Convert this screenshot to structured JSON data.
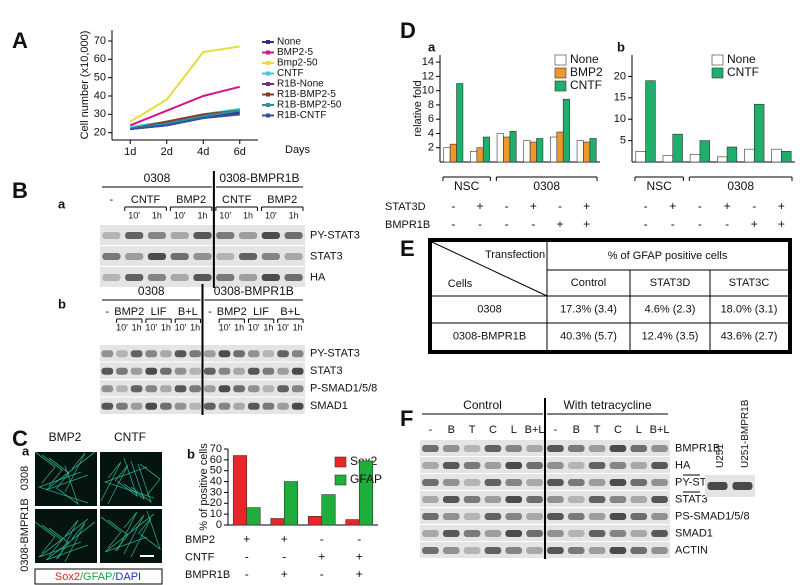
{
  "labels": {
    "A": "A",
    "B": "B",
    "C": "C",
    "D": "D",
    "E": "E",
    "F": "F",
    "Ba": "a",
    "Bb": "b",
    "Ca": "a",
    "Cb": "b",
    "Da": "a",
    "Db": "b"
  },
  "chart_data": [
    {
      "type": "line",
      "ylabel": "Cell number (x10,000)",
      "xlabel": "Days",
      "categories": [
        "1d",
        "2d",
        "4d",
        "6d"
      ],
      "ylim": [
        16,
        76
      ],
      "yticks": [
        20,
        30,
        40,
        50,
        60,
        70
      ],
      "series": [
        {
          "name": "None",
          "color": "#3b2a8c",
          "values": [
            22,
            24,
            28,
            31
          ]
        },
        {
          "name": "BMP2-5",
          "color": "#d4148c",
          "values": [
            24,
            32,
            40,
            45
          ]
        },
        {
          "name": "Bmp2-50",
          "color": "#e6dc3c",
          "values": [
            26,
            38,
            64,
            67
          ]
        },
        {
          "name": "CNTF",
          "color": "#3cc8e0",
          "values": [
            23,
            26,
            30,
            33
          ]
        },
        {
          "name": "R1B-None",
          "color": "#7a2a8a",
          "values": [
            22,
            25,
            28,
            30
          ]
        },
        {
          "name": "R1B-BMP2-5",
          "color": "#8a3a2a",
          "values": [
            22,
            26,
            30,
            32
          ]
        },
        {
          "name": "R1B-BMP2-50",
          "color": "#2a9090",
          "values": [
            22,
            25,
            29,
            32
          ]
        },
        {
          "name": "R1B-CNTF",
          "color": "#3050b0",
          "values": [
            22,
            24,
            28,
            30
          ]
        }
      ]
    },
    {
      "type": "bar",
      "ylabel": "% of positive cells",
      "categories": [
        null,
        null,
        null,
        null
      ],
      "ylim": [
        0,
        70
      ],
      "yticks": [
        0,
        10,
        20,
        30,
        40,
        50,
        60,
        70
      ],
      "series": [
        {
          "name": "Sox2",
          "color": "#e8262a",
          "values": [
            64,
            6,
            8,
            5
          ]
        },
        {
          "name": "GFAP",
          "color": "#1fae3c",
          "values": [
            16,
            40,
            28,
            59
          ]
        }
      ],
      "conditions": [
        {
          "name": "BMP2",
          "values": [
            "+",
            "+",
            "-",
            "-"
          ]
        },
        {
          "name": "CNTF",
          "values": [
            "-",
            "-",
            "+",
            "+"
          ]
        },
        {
          "name": "BMPR1B",
          "values": [
            "-",
            "+",
            "-",
            "+"
          ]
        }
      ]
    },
    {
      "type": "bar",
      "ylabel": "relative fold",
      "categories": [
        null,
        null,
        null,
        null,
        null,
        null
      ],
      "ylim": [
        0,
        15
      ],
      "yticks": [
        2,
        4,
        6,
        8,
        10,
        12,
        14
      ],
      "series": [
        {
          "name": "None",
          "color": "#ffffff",
          "values": [
            2,
            1.5,
            4,
            3,
            3.5,
            3
          ]
        },
        {
          "name": "BMP2",
          "color": "#f0962a",
          "values": [
            2.5,
            2,
            3.5,
            2.8,
            4.2,
            2.8
          ]
        },
        {
          "name": "CNTF",
          "color": "#1fae6c",
          "values": [
            11,
            3.5,
            4.3,
            3.3,
            8.8,
            3.3
          ]
        }
      ],
      "groups": [
        {
          "name": "NSC",
          "count": 2
        },
        {
          "name": "0308",
          "count": 4
        }
      ],
      "conditions": [
        {
          "name": "STAT3D",
          "values": [
            "-",
            "+",
            "-",
            "+",
            "-",
            "+"
          ]
        },
        {
          "name": "BMPR1B",
          "values": [
            "-",
            "-",
            "-",
            "-",
            "+",
            "+"
          ]
        }
      ]
    },
    {
      "type": "bar",
      "categories": [
        null,
        null,
        null,
        null,
        null,
        null
      ],
      "ylim": [
        0,
        25
      ],
      "yticks": [
        5,
        10,
        15,
        20
      ],
      "series": [
        {
          "name": "None",
          "color": "#ffffff",
          "values": [
            2.5,
            1.5,
            1.8,
            1.2,
            3,
            3
          ]
        },
        {
          "name": "CNTF",
          "color": "#1fae6c",
          "values": [
            19,
            6.5,
            5,
            3.5,
            13.5,
            2.5
          ]
        }
      ],
      "groups": [
        {
          "name": "NSC",
          "count": 2
        },
        {
          "name": "0308",
          "count": 4
        }
      ],
      "conditions": [
        {
          "values": [
            "-",
            "+",
            "-",
            "+",
            "-",
            "+"
          ]
        },
        {
          "values": [
            "-",
            "-",
            "-",
            "-",
            "+",
            "+"
          ]
        }
      ]
    }
  ],
  "blots": [
    {
      "groups": [
        {
          "name": "0308",
          "lanes": [
            {
              "treat": "-"
            },
            {
              "treat": "CNTF",
              "times": [
                "10'",
                "1h"
              ]
            },
            {
              "treat": "BMP2",
              "times": [
                "10'",
                "1h"
              ]
            }
          ]
        },
        {
          "name": "0308-BMPR1B",
          "lanes": [
            {
              "treat": "CNTF",
              "times": [
                "10'",
                "1h"
              ]
            },
            {
              "treat": "BMP2",
              "times": [
                "10'",
                "1h"
              ]
            }
          ]
        }
      ],
      "rows": [
        "PY-STAT3",
        "STAT3",
        "HA"
      ]
    },
    {
      "groups": [
        {
          "name": "0308",
          "lanes": [
            {
              "treat": "-"
            },
            {
              "treat": "BMP2",
              "times": [
                "10'",
                "1h"
              ]
            },
            {
              "treat": "LIF",
              "times": [
                "10'",
                "1h"
              ]
            },
            {
              "treat": "B+L",
              "times": [
                "10'",
                "1h"
              ]
            }
          ]
        },
        {
          "name": "0308-BMPR1B",
          "lanes": [
            {
              "treat": "-"
            },
            {
              "treat": "BMP2",
              "times": [
                "10'",
                "1h"
              ]
            },
            {
              "treat": "LIF",
              "times": [
                "10'",
                "1h"
              ]
            },
            {
              "treat": "B+L",
              "times": [
                "10'",
                "1h"
              ]
            }
          ]
        }
      ],
      "rows": [
        "PY-STAT3",
        "STAT3",
        "P-SMAD1/5/8",
        "SMAD1"
      ]
    },
    {
      "groups": [
        {
          "name": "Control",
          "lanes": [
            {
              "treat": "-"
            },
            {
              "treat": "B"
            },
            {
              "treat": "T"
            },
            {
              "treat": "C"
            },
            {
              "treat": "L"
            },
            {
              "treat": "B+L"
            }
          ]
        },
        {
          "name": "With tetracycline",
          "lanes": [
            {
              "treat": "-"
            },
            {
              "treat": "B"
            },
            {
              "treat": "T"
            },
            {
              "treat": "C"
            },
            {
              "treat": "L"
            },
            {
              "treat": "B+L"
            }
          ]
        }
      ],
      "rows": [
        "BMPR1B",
        "HA",
        "PY-STAT3",
        "STAT3",
        "PS-SMAD1/5/8",
        "SMAD1",
        "ACTIN"
      ],
      "inset": [
        "U251",
        "U251-BMPR1B"
      ]
    }
  ],
  "images": {
    "columns": [
      "BMP2",
      "CNTF"
    ],
    "rows": [
      "0308",
      "0308-BMPR1B"
    ],
    "caption": [
      {
        "text": "Sox2",
        "color": "#e02020"
      },
      {
        "text": "/GFAP/",
        "color": "#20a040"
      },
      {
        "text": "DAPI",
        "color": "#2030c0"
      }
    ]
  },
  "table": {
    "corner_top": "Transfection",
    "corner_bottom": "Cells",
    "header": "% of GFAP positive cells",
    "columns": [
      "Control",
      "STAT3D",
      "STAT3C"
    ],
    "rows": [
      {
        "name": "0308",
        "cells": [
          "17.3% (3.4)",
          "4.6% (2.3)",
          "18.0% (3.1)"
        ]
      },
      {
        "name": "0308-BMPR1B",
        "cells": [
          "40.3% (5.7)",
          "12.4% (3.5)",
          "43.6% (2.7)"
        ]
      }
    ]
  }
}
